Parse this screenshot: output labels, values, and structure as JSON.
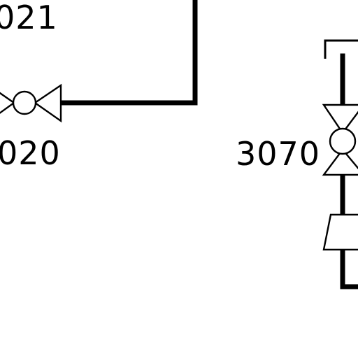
{
  "labels": {
    "tag_top_left": "021",
    "tag_valve_left": "020",
    "tag_valve_right": "3070"
  },
  "colors": {
    "line": "#000000",
    "background": "#ffffff"
  },
  "symbols": {
    "left_valve": "gate-valve-icon",
    "right_valve": "gate-valve-icon",
    "reducer": "reducer-icon",
    "pipe_end": "open-end-bracket-icon"
  }
}
